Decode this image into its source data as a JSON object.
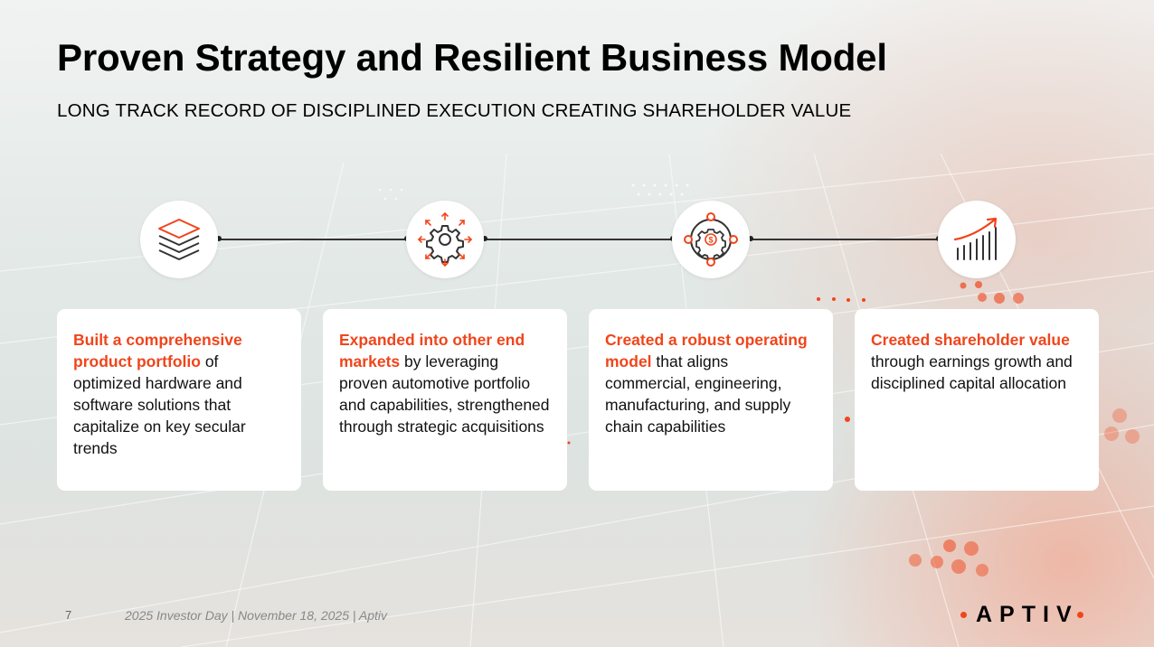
{
  "header": {
    "title": "Proven Strategy and Resilient Business Model",
    "subtitle": "LONG TRACK RECORD OF DISCIPLINED EXECUTION CREATING SHAREHOLDER VALUE"
  },
  "steps": [
    {
      "icon": "layers-icon",
      "highlight": "Built a comprehensive product portfolio",
      "body": " of optimized hardware and software solutions that capitalize on key secular trends"
    },
    {
      "icon": "gear-expand-icon",
      "highlight": "Expanded into other end markets",
      "body": " by leveraging proven automotive portfolio and capabilities, strengthened through strategic acquisitions"
    },
    {
      "icon": "operating-model-icon",
      "highlight": "Created a robust operating model",
      "body": " that aligns commercial, engineering, manufacturing, and supply chain capabilities"
    },
    {
      "icon": "growth-chart-icon",
      "highlight": "Created shareholder value",
      "body": " through earnings growth and disciplined capital allocation"
    }
  ],
  "footer": {
    "page_number": "7",
    "text": "2025 Investor Day | November 18, 2025 | Aptiv",
    "logo": "APTIV"
  },
  "colors": {
    "accent": "#f0451b",
    "text": "#000000",
    "card": "#ffffff"
  }
}
